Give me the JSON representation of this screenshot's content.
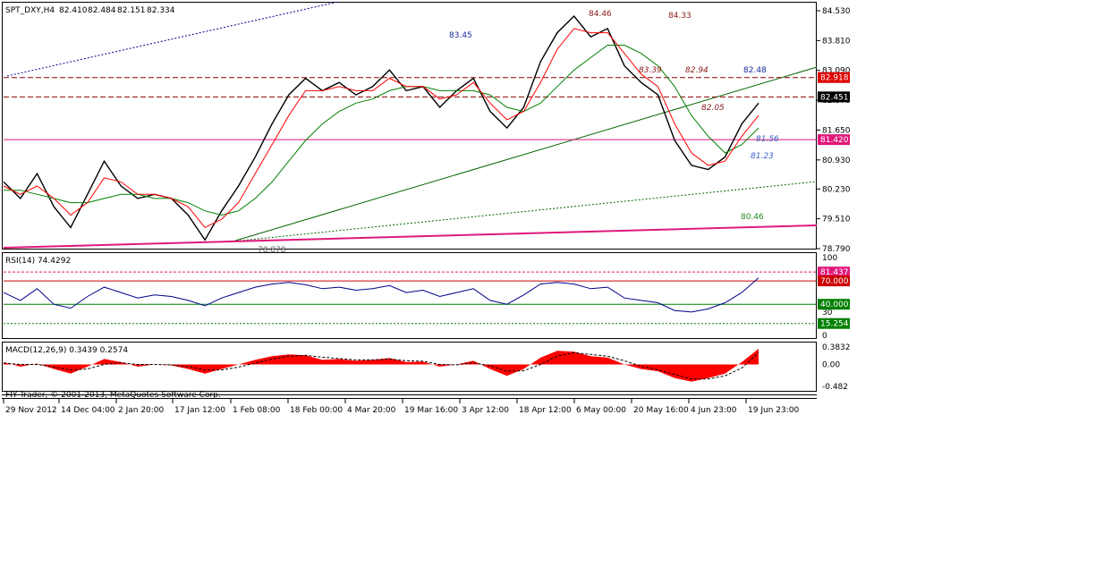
{
  "header": {
    "symbol": "SPT_DXY,H4",
    "open": "82.410",
    "high": "82.484",
    "low": "82.151",
    "close": "82.334"
  },
  "chart_data": [
    {
      "type": "line",
      "title": "SPT_DXY,H4 82.410 82.484 82.151 82.334",
      "ylim": [
        78.79,
        84.53
      ],
      "y_ticks": [
        "84.530",
        "83.810",
        "83.090",
        "82.370",
        "81.650",
        "80.930",
        "80.230",
        "79.510",
        "78.790"
      ],
      "x_ticks": [
        "29 Nov 2012",
        "14 Dec 04:00",
        "2 Jan 20:00",
        "17 Jan 12:00",
        "1 Feb 08:00",
        "18 Feb 00:00",
        "4 Mar 20:00",
        "19 Mar 16:00",
        "3 Apr 12:00",
        "18 Apr 12:00",
        "6 May 00:00",
        "20 May 16:00",
        "4 Jun 23:00",
        "19 Jun 23:00"
      ],
      "series": [
        {
          "values": [
            80.4,
            80.0,
            80.6,
            79.8,
            79.3,
            80.1,
            80.9,
            80.3,
            80.0,
            80.1,
            80.0,
            79.6,
            79.0,
            79.7,
            80.3,
            81.0,
            81.8,
            82.5,
            82.9,
            82.6,
            82.8,
            82.5,
            82.7,
            83.1,
            82.6,
            82.7,
            82.2,
            82.6,
            82.9,
            82.1,
            81.7,
            82.2,
            83.3,
            84.0,
            84.4,
            83.9,
            84.1,
            83.2,
            82.8,
            82.5,
            81.4,
            80.8,
            80.7,
            81.0,
            81.8,
            82.3
          ]
        },
        {
          "values": [
            80.2,
            80.2,
            80.1,
            80.0,
            79.9,
            79.9,
            80.0,
            80.1,
            80.1,
            80.0,
            80.0,
            79.9,
            79.7,
            79.6,
            79.7,
            80.0,
            80.4,
            80.9,
            81.4,
            81.8,
            82.1,
            82.3,
            82.4,
            82.6,
            82.7,
            82.7,
            82.6,
            82.6,
            82.6,
            82.5,
            82.2,
            82.1,
            82.3,
            82.7,
            83.1,
            83.4,
            83.7,
            83.7,
            83.5,
            83.2,
            82.7,
            82.0,
            81.5,
            81.1,
            81.3,
            81.7
          ]
        },
        {
          "values": [
            80.3,
            80.1,
            80.3,
            80.0,
            79.6,
            79.9,
            80.5,
            80.4,
            80.1,
            80.1,
            80.0,
            79.8,
            79.3,
            79.5,
            79.9,
            80.6,
            81.3,
            82.0,
            82.6,
            82.6,
            82.7,
            82.6,
            82.6,
            82.9,
            82.7,
            82.7,
            82.4,
            82.5,
            82.8,
            82.3,
            81.9,
            82.1,
            82.8,
            83.6,
            84.1,
            84.0,
            84.0,
            83.5,
            83.0,
            82.7,
            81.8,
            81.1,
            80.8,
            80.9,
            81.5,
            82.0
          ]
        }
      ],
      "annotations": [
        "84.46",
        "84.33",
        "83.45",
        "83.39",
        "82.94",
        "82.48",
        "82.05",
        "81.56",
        "81.23",
        "80.46",
        "78.878"
      ],
      "price_tags": [
        {
          "value": "82.918",
          "color": "#e00000"
        },
        {
          "value": "82.451",
          "color": "#000000"
        },
        {
          "value": "81.420",
          "color": "#e0187a"
        }
      ],
      "colors": {
        "price": "#000000",
        "ma_fast": "#ff0000",
        "ma_slow": "#008000",
        "trendline": "#006400",
        "support": "#e0187a",
        "resistance": "#8b0000"
      }
    },
    {
      "type": "line",
      "title": "RSI(14) 74.4292",
      "ylim": [
        0,
        100
      ],
      "y_ticks": [
        "100",
        "70.000",
        "40.000",
        "30",
        "0"
      ],
      "series": [
        {
          "values": [
            55,
            45,
            60,
            40,
            35,
            50,
            62,
            55,
            48,
            52,
            50,
            45,
            38,
            48,
            55,
            62,
            66,
            68,
            65,
            60,
            62,
            58,
            60,
            64,
            55,
            58,
            50,
            55,
            60,
            45,
            40,
            52,
            66,
            68,
            66,
            60,
            62,
            48,
            45,
            42,
            32,
            30,
            34,
            42,
            55,
            74
          ]
        }
      ],
      "price_tags": [
        {
          "value": "81.437",
          "color": "#e0187a"
        },
        {
          "value": "70.000",
          "color": "#cc0000"
        },
        {
          "value": "40.000",
          "color": "#008000"
        },
        {
          "value": "15.254",
          "color": "#008000"
        }
      ]
    },
    {
      "type": "area",
      "title": "MACD(12,26,9) 0.3439 0.2574",
      "ylim": [
        -0.482,
        0.3832
      ],
      "y_ticks": [
        "0.3832",
        "0.00",
        "-0.482"
      ],
      "series": [
        {
          "values": [
            0.05,
            -0.05,
            0.02,
            -0.1,
            -0.2,
            -0.05,
            0.12,
            0.05,
            -0.05,
            0.0,
            -0.02,
            -0.1,
            -0.2,
            -0.1,
            0.0,
            0.1,
            0.18,
            0.22,
            0.2,
            0.1,
            0.12,
            0.08,
            0.1,
            0.14,
            0.05,
            0.06,
            -0.05,
            0.0,
            0.08,
            -0.1,
            -0.25,
            -0.1,
            0.15,
            0.3,
            0.28,
            0.18,
            0.15,
            0.0,
            -0.1,
            -0.15,
            -0.3,
            -0.38,
            -0.3,
            -0.2,
            0.05,
            0.3439
          ]
        },
        {
          "values": [
            0.03,
            0.0,
            0.0,
            -0.06,
            -0.12,
            -0.1,
            0.0,
            0.04,
            0.0,
            0.0,
            -0.01,
            -0.05,
            -0.12,
            -0.12,
            -0.06,
            0.03,
            0.12,
            0.18,
            0.2,
            0.16,
            0.13,
            0.1,
            0.1,
            0.12,
            0.08,
            0.07,
            0.0,
            -0.01,
            0.04,
            -0.03,
            -0.15,
            -0.14,
            0.0,
            0.18,
            0.26,
            0.22,
            0.18,
            0.08,
            -0.04,
            -0.12,
            -0.22,
            -0.32,
            -0.32,
            -0.25,
            -0.08,
            0.2574
          ]
        }
      ]
    }
  ],
  "footer": {
    "copyright": "FIY Trader, © 2001-2013, MetaQuotes Software Corp."
  }
}
